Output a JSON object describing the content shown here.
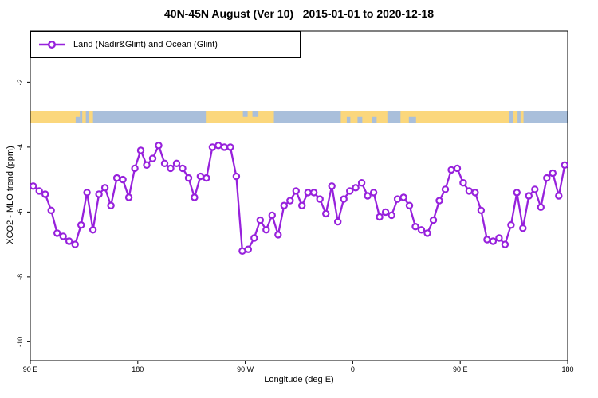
{
  "header": {
    "title": "40N-45N August (Ver 10)   2015-01-01 to 2020-12-18"
  },
  "legend": {
    "label": "Land (Nadir&Glint) and Ocean (Glint)",
    "marker": "open-circle-on-line",
    "position": "top-left-inside"
  },
  "colors": {
    "series": "#9721dc",
    "marker_fill": "#ffffff",
    "land_band": "#fbd77c",
    "ocean_band": "#a9bfdb",
    "axis": "#000000"
  },
  "chart_data": {
    "type": "line",
    "title": "40N-45N August (Ver 10)   2015-01-01 to 2020-12-18",
    "xlabel": "Longitude (deg E)",
    "ylabel": "XCO2 - MLO trend (ppm)",
    "xlim": [
      90,
      540
    ],
    "ylim": [
      -10.58,
      -0.42
    ],
    "grid": false,
    "legend_position": "top-left-inside",
    "x_ticks": [
      {
        "x": 90,
        "label": "90 E"
      },
      {
        "x": 180,
        "label": "180"
      },
      {
        "x": 270,
        "label": "90 W"
      },
      {
        "x": 360,
        "label": "0"
      },
      {
        "x": 450,
        "label": "90 E"
      },
      {
        "x": 540,
        "label": "180"
      }
    ],
    "y_ticks": [
      {
        "y": -2,
        "label": "-2"
      },
      {
        "y": -4,
        "label": "-4"
      },
      {
        "y": -6,
        "label": "-6"
      },
      {
        "y": -8,
        "label": "-8"
      },
      {
        "y": -10,
        "label": "-10"
      }
    ],
    "series": [
      {
        "name": "Land (Nadir&Glint) and Ocean (Glint)",
        "color": "#9721dc",
        "x_start": 92.5,
        "x_step": 5,
        "values": [
          -5.2,
          -5.35,
          -5.45,
          -5.95,
          -6.65,
          -6.75,
          -6.9,
          -7.0,
          -6.4,
          -5.4,
          -6.55,
          -5.45,
          -5.25,
          -5.8,
          -4.95,
          -5.0,
          -5.55,
          -4.65,
          -4.1,
          -4.55,
          -4.35,
          -3.95,
          -4.5,
          -4.65,
          -4.5,
          -4.65,
          -4.95,
          -5.55,
          -4.9,
          -4.95,
          -4.0,
          -3.95,
          -4.0,
          -4.0,
          -4.9,
          -7.2,
          -7.15,
          -6.8,
          -6.25,
          -6.55,
          -6.1,
          -6.7,
          -5.8,
          -5.65,
          -5.35,
          -5.8,
          -5.4,
          -5.4,
          -5.6,
          -6.05,
          -5.2,
          -6.3,
          -5.6,
          -5.35,
          -5.25,
          -5.1,
          -5.5,
          -5.4,
          -6.15,
          -6.0,
          -6.1,
          -5.6,
          -5.55,
          -5.8,
          -6.45,
          -6.55,
          -6.65,
          -6.25,
          -5.65,
          -5.3,
          -4.7,
          -4.65,
          -5.1,
          -5.35,
          -5.4,
          -5.95,
          -6.85,
          -6.9,
          -6.8,
          -7.0,
          -6.4,
          -5.4,
          -6.5,
          -5.5,
          -5.3,
          -5.85,
          -4.95,
          -4.8,
          -5.5,
          -4.55
        ]
      }
    ],
    "map_band": {
      "description": "40N-45N latitude strip of world map drawn across plot: land=orange, ocean=blue",
      "top_value": -2.88,
      "bottom_value": -3.25,
      "land_color": "#fbd77c",
      "ocean_color": "#a9bfdb",
      "land_segments": [
        [
          90,
          131.5
        ],
        [
          133.5,
          136.5
        ],
        [
          139,
          142.5
        ],
        [
          237,
          294
        ],
        [
          350,
          491
        ],
        [
          494,
          498
        ],
        [
          500.5,
          503
        ]
      ],
      "ocean_patches": [
        [
          128,
          131.5,
          "b"
        ],
        [
          268,
          272,
          "t"
        ],
        [
          276,
          281,
          "t"
        ],
        [
          355,
          358,
          "b"
        ],
        [
          364,
          368,
          "b"
        ],
        [
          376,
          380,
          "b"
        ],
        [
          389,
          400,
          "f"
        ],
        [
          407,
          413,
          "b"
        ]
      ]
    }
  }
}
